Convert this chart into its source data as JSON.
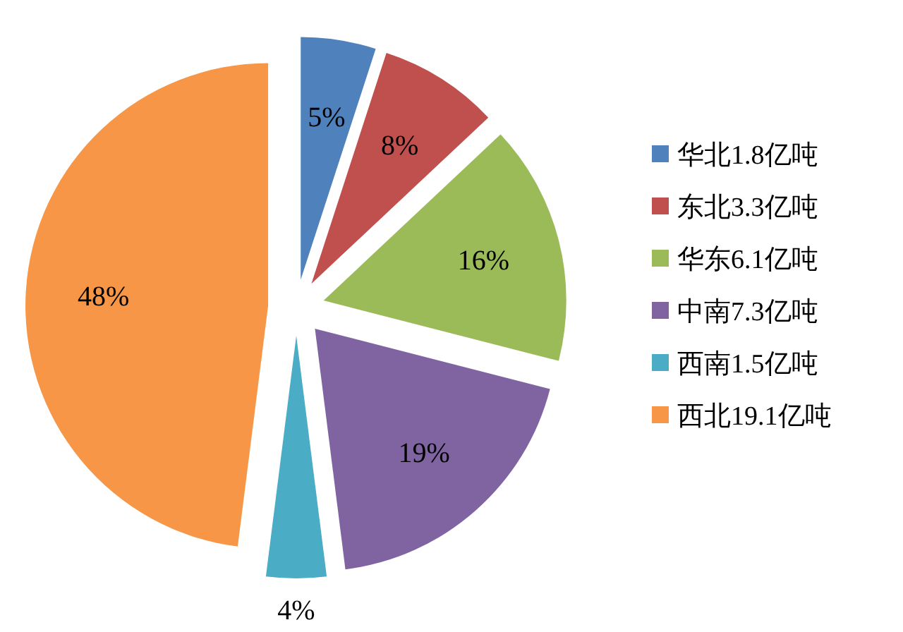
{
  "chart_data": {
    "type": "pie",
    "categories": [
      "华北1.8亿吨",
      "东北3.3亿吨",
      "华东6.1亿吨",
      "中南7.3亿吨",
      "西南1.5亿吨",
      "西北19.1亿吨"
    ],
    "values": [
      5,
      8,
      16,
      19,
      4,
      48
    ],
    "colors": [
      "#4f81bd",
      "#c0504d",
      "#9bbb59",
      "#8064a2",
      "#4bacc6",
      "#f79646"
    ],
    "value_labels": [
      "5%",
      "8%",
      "16%",
      "19%",
      "4%",
      "48%"
    ],
    "legend": "right"
  }
}
